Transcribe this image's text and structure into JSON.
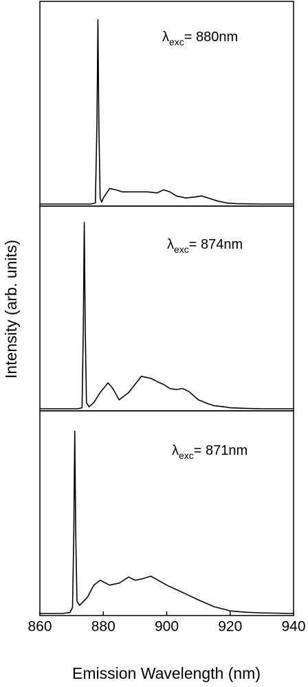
{
  "chart_data": [
    {
      "type": "line",
      "annotation": {
        "symbol": "λ",
        "subscript": "exc",
        "text": "= 880nm"
      },
      "xlim": [
        860,
        940
      ],
      "ylim": [
        0,
        100
      ],
      "color": "#000000",
      "x": [
        860,
        870,
        876,
        877.5,
        878,
        878.3,
        878.6,
        879,
        879.5,
        880,
        882,
        884,
        886,
        890,
        894,
        897,
        899,
        901,
        903,
        906,
        909,
        911,
        913,
        916,
        919,
        922,
        930,
        940
      ],
      "values": [
        0,
        0,
        0,
        0.5,
        40,
        91,
        40,
        3,
        1,
        3,
        7.7,
        7,
        6,
        6,
        6,
        5.5,
        7,
        6,
        4,
        3,
        3.5,
        4,
        3,
        1.5,
        0.5,
        0.2,
        0,
        0
      ]
    },
    {
      "type": "line",
      "annotation": {
        "symbol": "λ",
        "subscript": "exc",
        "text": "= 874nm"
      },
      "ylabel": "Intensity (arb. units)",
      "xlim": [
        860,
        940
      ],
      "ylim": [
        0,
        100
      ],
      "color": "#000000",
      "x": [
        860,
        868,
        872,
        873.3,
        873.7,
        874,
        874.3,
        874.7,
        875.5,
        877,
        879,
        881.5,
        883,
        885,
        888,
        892,
        895,
        897,
        899,
        901,
        903,
        905,
        907,
        910,
        913,
        915,
        918,
        920,
        925,
        930,
        940
      ],
      "values": [
        0,
        0,
        0,
        0.5,
        40,
        92,
        40,
        3,
        1,
        3,
        8,
        12.8,
        10,
        4.4,
        8,
        16,
        15,
        13.4,
        12,
        10,
        9.5,
        10,
        8.5,
        4.4,
        2.5,
        1.5,
        1,
        0.5,
        0.2,
        0,
        0
      ]
    },
    {
      "type": "line",
      "annotation": {
        "symbol": "λ",
        "subscript": "exc",
        "text": "= 871nm"
      },
      "xlabel": "Emission Wavelength (nm)",
      "xlim": [
        860,
        940
      ],
      "ylim": [
        0,
        100
      ],
      "color": "#000000",
      "xticks": [
        860,
        880,
        900,
        920,
        940
      ],
      "x": [
        860,
        867,
        869.5,
        870.3,
        870.7,
        871,
        871.3,
        871.7,
        872.5,
        875,
        877,
        879,
        882,
        885,
        888,
        890,
        892,
        895,
        900,
        905,
        910,
        915,
        920,
        925,
        930,
        940
      ],
      "values": [
        0,
        0,
        0.5,
        3,
        40,
        90,
        40,
        6,
        4,
        8,
        14,
        16.4,
        14,
        15,
        18,
        16.4,
        17,
        18.4,
        14,
        10.4,
        6.7,
        3.3,
        1.3,
        0.6,
        0.3,
        0
      ]
    }
  ]
}
